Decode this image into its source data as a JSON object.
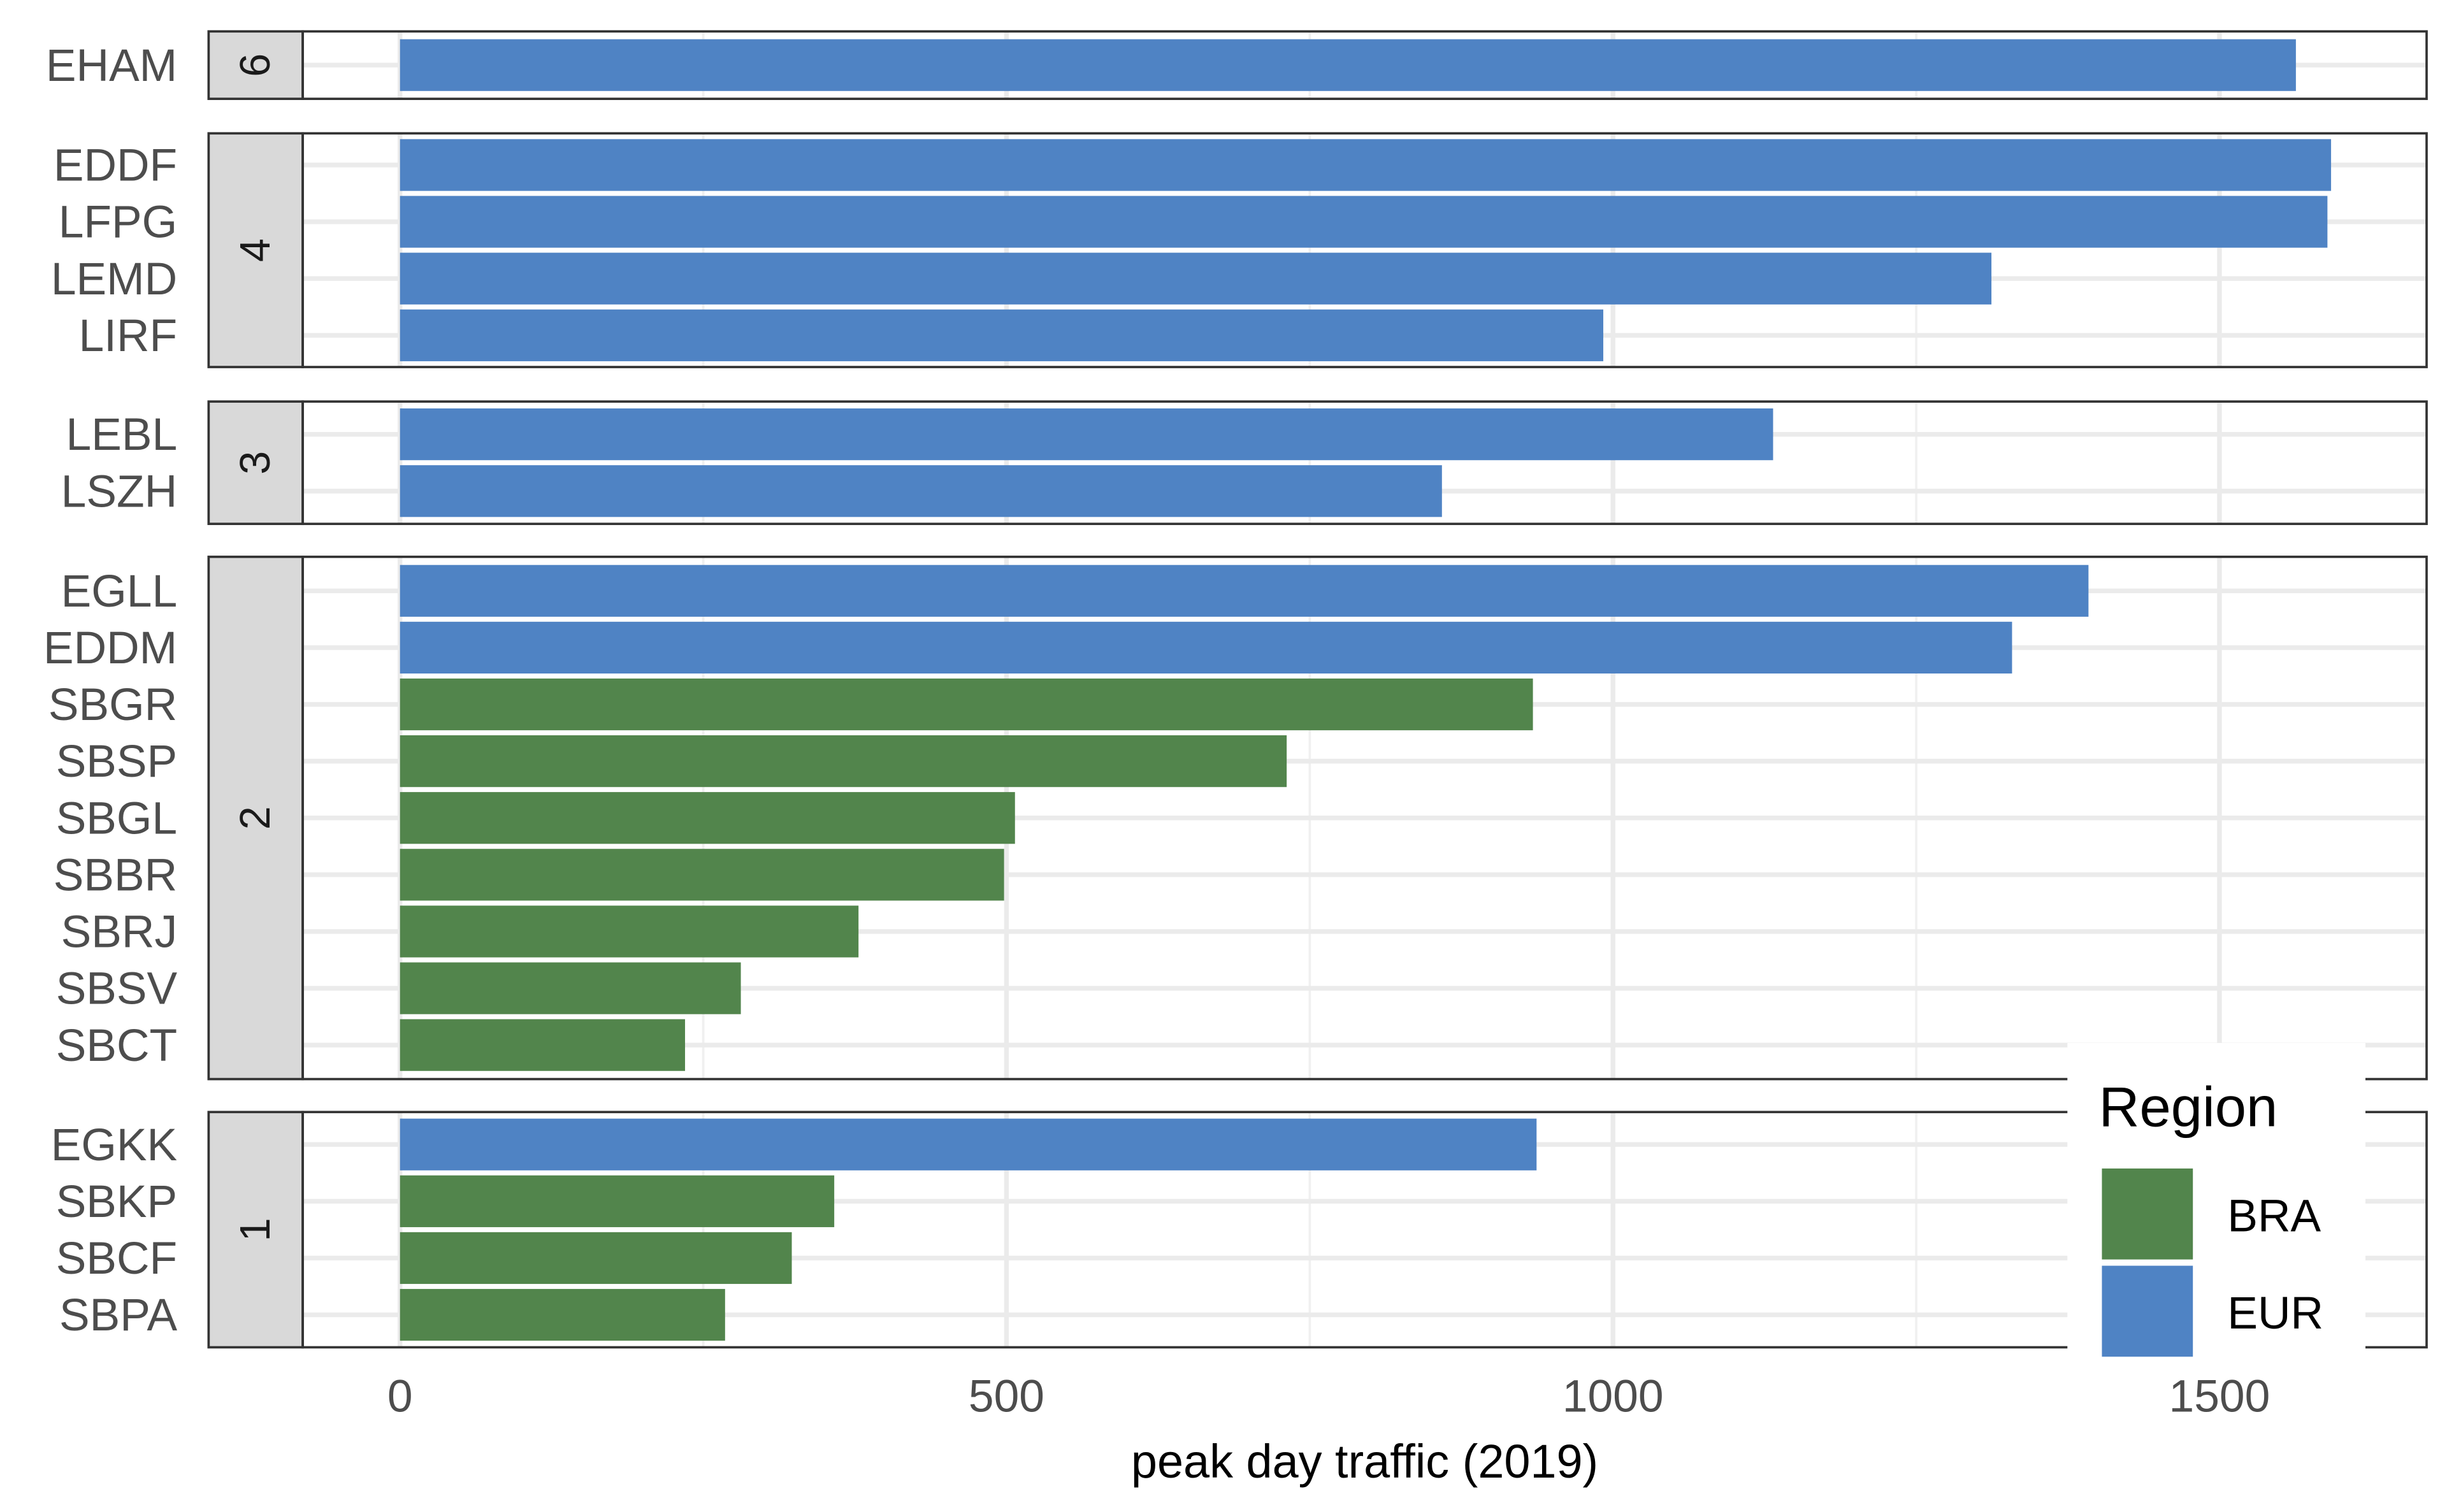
{
  "chart_data": {
    "type": "bar",
    "orientation": "horizontal",
    "xlabel": "peak day traffic (2019)",
    "ylabel": "",
    "xlim": [
      -160,
      1670
    ],
    "x_ticks": [
      0,
      500,
      1000,
      1500
    ],
    "x_tick_labels": [
      "0",
      "500",
      "1000",
      "1500"
    ],
    "grid": true,
    "legend": {
      "title": "Region",
      "position": "bottom-right",
      "entries": [
        {
          "label": "BRA",
          "color": "#52854C"
        },
        {
          "label": "EUR",
          "color": "#4F83C4"
        }
      ]
    },
    "facets": [
      {
        "label": "6",
        "bars": [
          {
            "airport": "EHAM",
            "region": "EUR",
            "value": 1563
          }
        ]
      },
      {
        "label": "4",
        "bars": [
          {
            "airport": "EDDF",
            "region": "EUR",
            "value": 1592
          },
          {
            "airport": "LFPG",
            "region": "EUR",
            "value": 1589
          },
          {
            "airport": "LEMD",
            "region": "EUR",
            "value": 1312
          },
          {
            "airport": "LIRF",
            "region": "EUR",
            "value": 992
          }
        ]
      },
      {
        "label": "3",
        "bars": [
          {
            "airport": "LEBL",
            "region": "EUR",
            "value": 1132
          },
          {
            "airport": "LSZH",
            "region": "EUR",
            "value": 859
          }
        ]
      },
      {
        "label": "2",
        "bars": [
          {
            "airport": "EGLL",
            "region": "EUR",
            "value": 1392
          },
          {
            "airport": "EDDM",
            "region": "EUR",
            "value": 1329
          },
          {
            "airport": "SBGR",
            "region": "BRA",
            "value": 934
          },
          {
            "airport": "SBSP",
            "region": "BRA",
            "value": 731
          },
          {
            "airport": "SBGL",
            "region": "BRA",
            "value": 507
          },
          {
            "airport": "SBBR",
            "region": "BRA",
            "value": 498
          },
          {
            "airport": "SBRJ",
            "region": "BRA",
            "value": 378
          },
          {
            "airport": "SBSV",
            "region": "BRA",
            "value": 281
          },
          {
            "airport": "SBCT",
            "region": "BRA",
            "value": 235
          }
        ]
      },
      {
        "label": "1",
        "bars": [
          {
            "airport": "EGKK",
            "region": "EUR",
            "value": 937
          },
          {
            "airport": "SBKP",
            "region": "BRA",
            "value": 358
          },
          {
            "airport": "SBCF",
            "region": "BRA",
            "value": 323
          },
          {
            "airport": "SBPA",
            "region": "BRA",
            "value": 268
          }
        ]
      }
    ]
  }
}
